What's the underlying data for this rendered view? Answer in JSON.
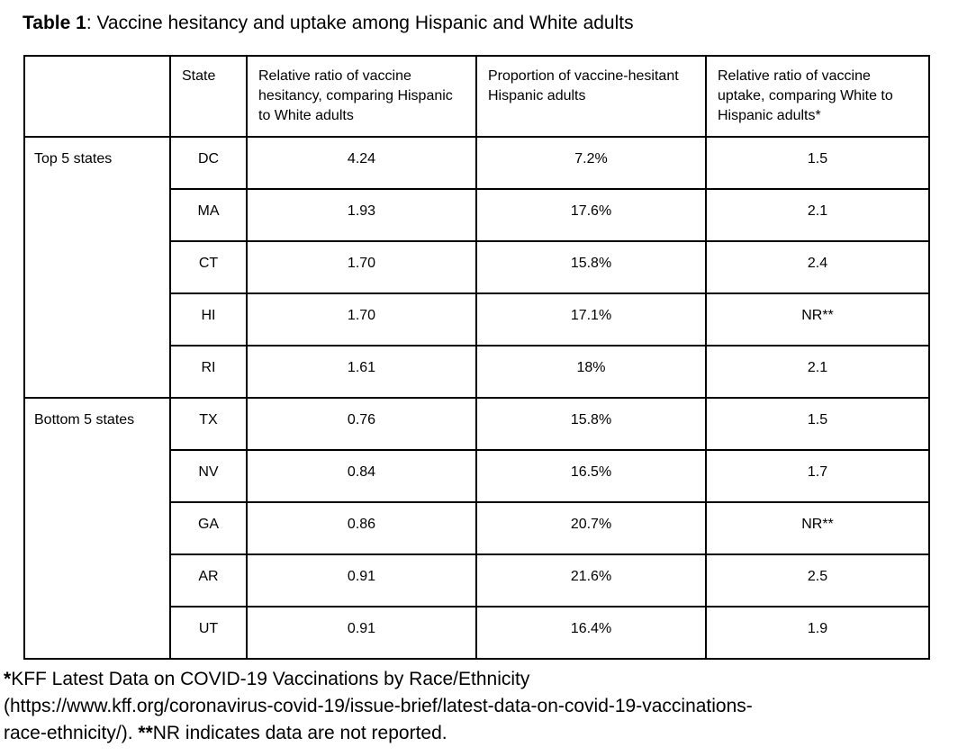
{
  "title": {
    "label_bold": "Table 1",
    "label_rest": ": Vaccine hesitancy and uptake among Hispanic and White adults"
  },
  "table": {
    "columns": [
      "",
      "State",
      "Relative ratio of vaccine hesitancy, comparing Hispanic to White adults",
      "Proportion of vaccine-hesitant Hispanic adults",
      "Relative ratio of vaccine uptake, comparing White to Hispanic adults*"
    ],
    "groups": [
      {
        "label": "Top 5 states",
        "rows": [
          {
            "state": "DC",
            "hesitancy_ratio": "4.24",
            "hesitant_proportion": "7.2%",
            "uptake_ratio": "1.5"
          },
          {
            "state": "MA",
            "hesitancy_ratio": "1.93",
            "hesitant_proportion": "17.6%",
            "uptake_ratio": "2.1"
          },
          {
            "state": "CT",
            "hesitancy_ratio": "1.70",
            "hesitant_proportion": "15.8%",
            "uptake_ratio": "2.4"
          },
          {
            "state": "HI",
            "hesitancy_ratio": "1.70",
            "hesitant_proportion": "17.1%",
            "uptake_ratio": "NR**"
          },
          {
            "state": "RI",
            "hesitancy_ratio": "1.61",
            "hesitant_proportion": "18%",
            "uptake_ratio": "2.1"
          }
        ]
      },
      {
        "label": "Bottom 5 states",
        "rows": [
          {
            "state": "TX",
            "hesitancy_ratio": "0.76",
            "hesitant_proportion": "15.8%",
            "uptake_ratio": "1.5"
          },
          {
            "state": "NV",
            "hesitancy_ratio": "0.84",
            "hesitant_proportion": "16.5%",
            "uptake_ratio": "1.7"
          },
          {
            "state": "GA",
            "hesitancy_ratio": "0.86",
            "hesitant_proportion": "20.7%",
            "uptake_ratio": "NR**"
          },
          {
            "state": "AR",
            "hesitancy_ratio": "0.91",
            "hesitant_proportion": "21.6%",
            "uptake_ratio": "2.5"
          },
          {
            "state": "UT",
            "hesitancy_ratio": "0.91",
            "hesitant_proportion": "16.4%",
            "uptake_ratio": "1.9"
          }
        ]
      }
    ]
  },
  "footnote": {
    "lines": [
      [
        {
          "text": "*",
          "bold": true
        },
        {
          "text": "KFF Latest Data on COVID-19 Vaccinations by Race/Ethnicity",
          "bold": false
        }
      ],
      [
        {
          "text": "(https://www.kff.org/coronavirus-covid-19/issue-brief/latest-data-on-covid-19-vaccinations-",
          "bold": false
        }
      ],
      [
        {
          "text": "race-ethnicity/). ",
          "bold": false
        },
        {
          "text": "**",
          "bold": true
        },
        {
          "text": "NR indicates data are not reported.",
          "bold": false
        }
      ]
    ]
  },
  "colors": {
    "background": "#ffffff",
    "text": "#000000",
    "border": "#000000"
  }
}
